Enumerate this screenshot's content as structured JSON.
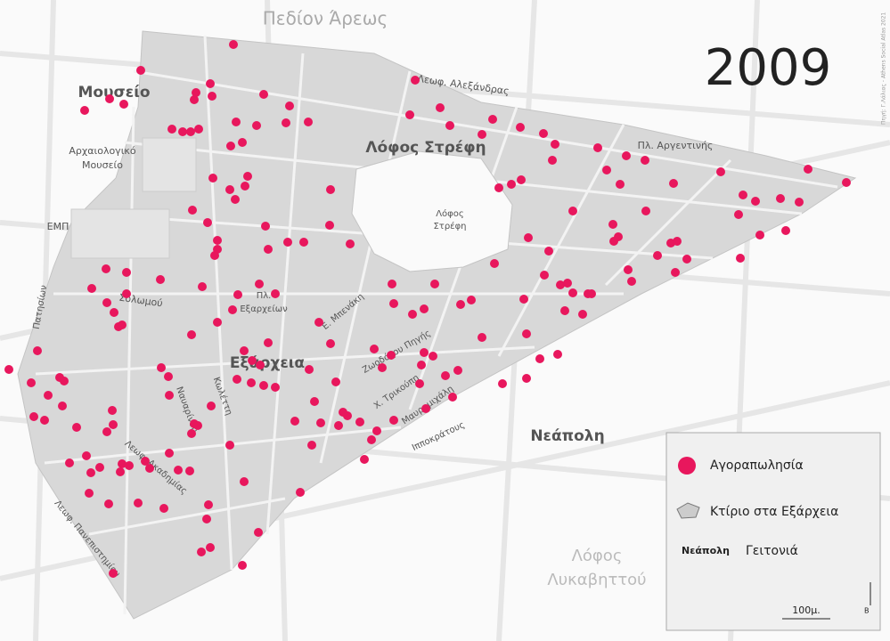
{
  "title": "2009",
  "credit": "Πηγή: Γ.Λάλιας - Athens Social Atlas 2021",
  "labels": [
    "Πεδίον Άρεως",
    "Μουσείο",
    "Λεωφ. Αλεξάνδρας",
    "Λόφος Στρέφη",
    "Λόφος",
    "Στρέφη",
    "Πλ. Αργεντινής",
    "Αρχαιολογικό",
    "Μουσείο",
    "ΕΜΠ",
    "Πατησίων",
    "Σολωμού",
    "Πλ.",
    "Εξαρχείων",
    "Ε. Μπενάκη",
    "Εξάρχεια",
    "Ζωοδόχου Πηγής",
    "Χ. Τρικούπη",
    "Μαυρομιχάλη",
    "Ιπποκράτους",
    "Κωλέττη",
    "Ναυαρίνου",
    "Λεωφ. Ακαδημίας",
    "Λεωφ. Πανεπιστημίου",
    "Νεάπολη",
    "Λόφος",
    "Λυκαβηττού"
  ],
  "legend": {
    "sale": "Αγοραπωλησία",
    "building": "Κτίριο στα Εξάρχεια",
    "area_example": "Νεάπολη",
    "area": "Γειτονιά",
    "scale": "100μ.",
    "north": "Β"
  }
}
